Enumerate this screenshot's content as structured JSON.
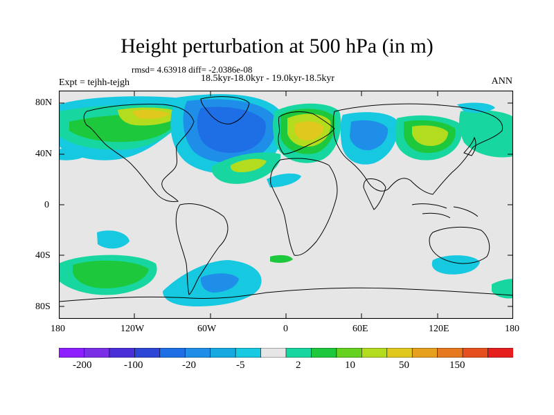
{
  "title": "Height perturbation at 500 hPa (in m)",
  "stats_line": "rmsd= 4.63918 diff= -2.0386e-08",
  "period_line": "18.5kyr-18.0kyr - 19.0kyr-18.5kyr",
  "expt_label": "Expt = tejhh-tejgh",
  "season_label": "ANN",
  "lat_ticks": [
    "80N",
    "40N",
    "0",
    "40S",
    "80S"
  ],
  "lon_ticks": [
    "180",
    "120W",
    "60W",
    "0",
    "60E",
    "120E",
    "180"
  ],
  "colorbar": {
    "colors": [
      "#8c1eff",
      "#7a2ee6",
      "#4a2fd9",
      "#2e46d6",
      "#1e6ee6",
      "#1e8ee8",
      "#16a8e0",
      "#16c8e0",
      "#e6e6e6",
      "#18d6a0",
      "#1ec83c",
      "#64d21e",
      "#b4dc1e",
      "#e0c81e",
      "#e6a01e",
      "#e6781e",
      "#e6501e",
      "#e61e1e"
    ],
    "labels": [
      "-200",
      "-100",
      "-20",
      "-5",
      "2",
      "10",
      "50",
      "150"
    ]
  },
  "colors": {
    "background": "#e6e6e6",
    "blue_dark": "#1e6ee6",
    "blue_mid": "#1e8ee8",
    "cyan": "#16c8e0",
    "teal": "#18d6a0",
    "green": "#1ec83c",
    "yellowgreen": "#b4dc1e",
    "yellow": "#e0c81e",
    "orange": "#e6781e"
  }
}
